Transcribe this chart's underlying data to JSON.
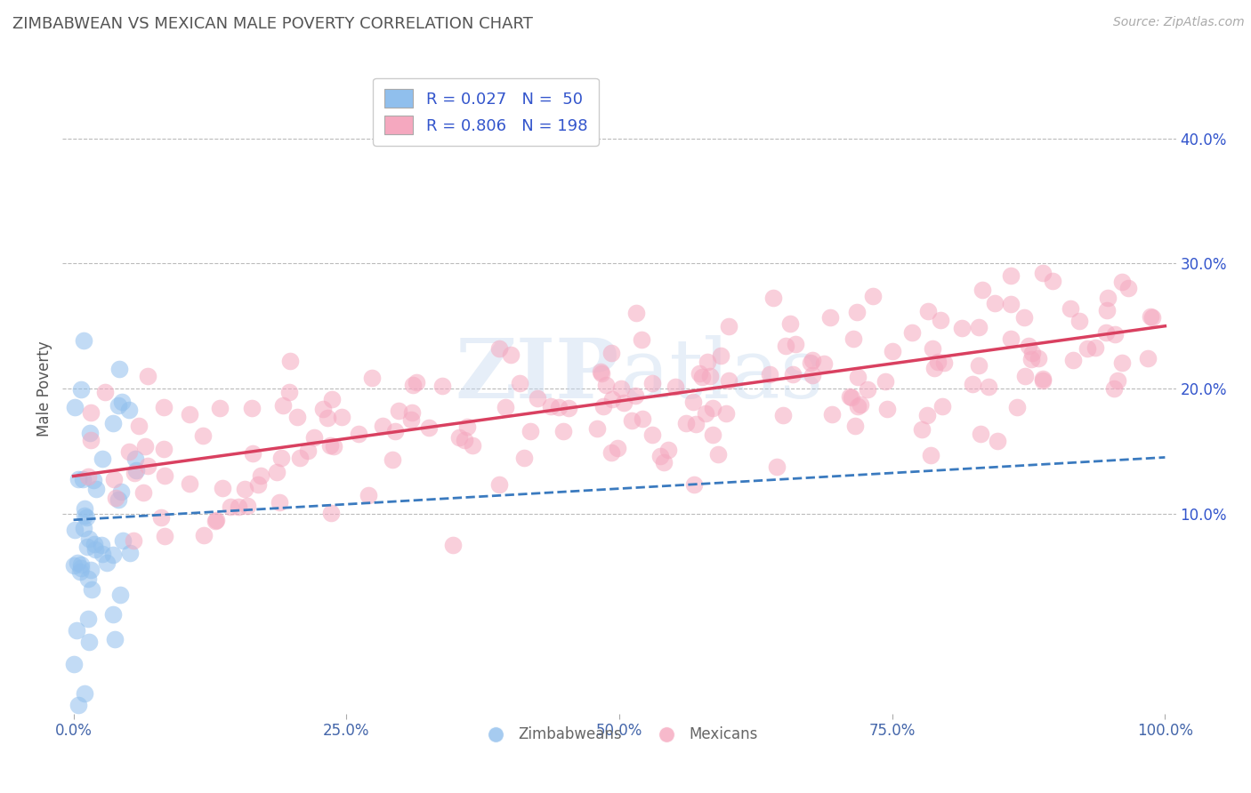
{
  "title": "ZIMBABWEAN VS MEXICAN MALE POVERTY CORRELATION CHART",
  "source_text": "Source: ZipAtlas.com",
  "ylabel": "Male Poverty",
  "watermark": "ZIPatlas",
  "xlim": [
    -0.01,
    1.01
  ],
  "ylim": [
    -0.06,
    0.46
  ],
  "x_ticks": [
    0.0,
    0.25,
    0.5,
    0.75,
    1.0
  ],
  "x_tick_labels": [
    "0.0%",
    "25.0%",
    "50.0%",
    "75.0%",
    "100.0%"
  ],
  "y_ticks_right": [
    0.1,
    0.2,
    0.3,
    0.4
  ],
  "y_tick_labels_right": [
    "10.0%",
    "20.0%",
    "30.0%",
    "40.0%"
  ],
  "grid_color": "#bbbbbb",
  "background_color": "#ffffff",
  "blue_color": "#90bfed",
  "pink_color": "#f5a8bf",
  "blue_line_color": "#3a7abf",
  "pink_line_color": "#d94060",
  "legend_text_color": "#3355cc",
  "title_color": "#555555",
  "legend_R1": "R = 0.027",
  "legend_N1": "N =  50",
  "legend_R2": "R = 0.806",
  "legend_N2": "N = 198"
}
